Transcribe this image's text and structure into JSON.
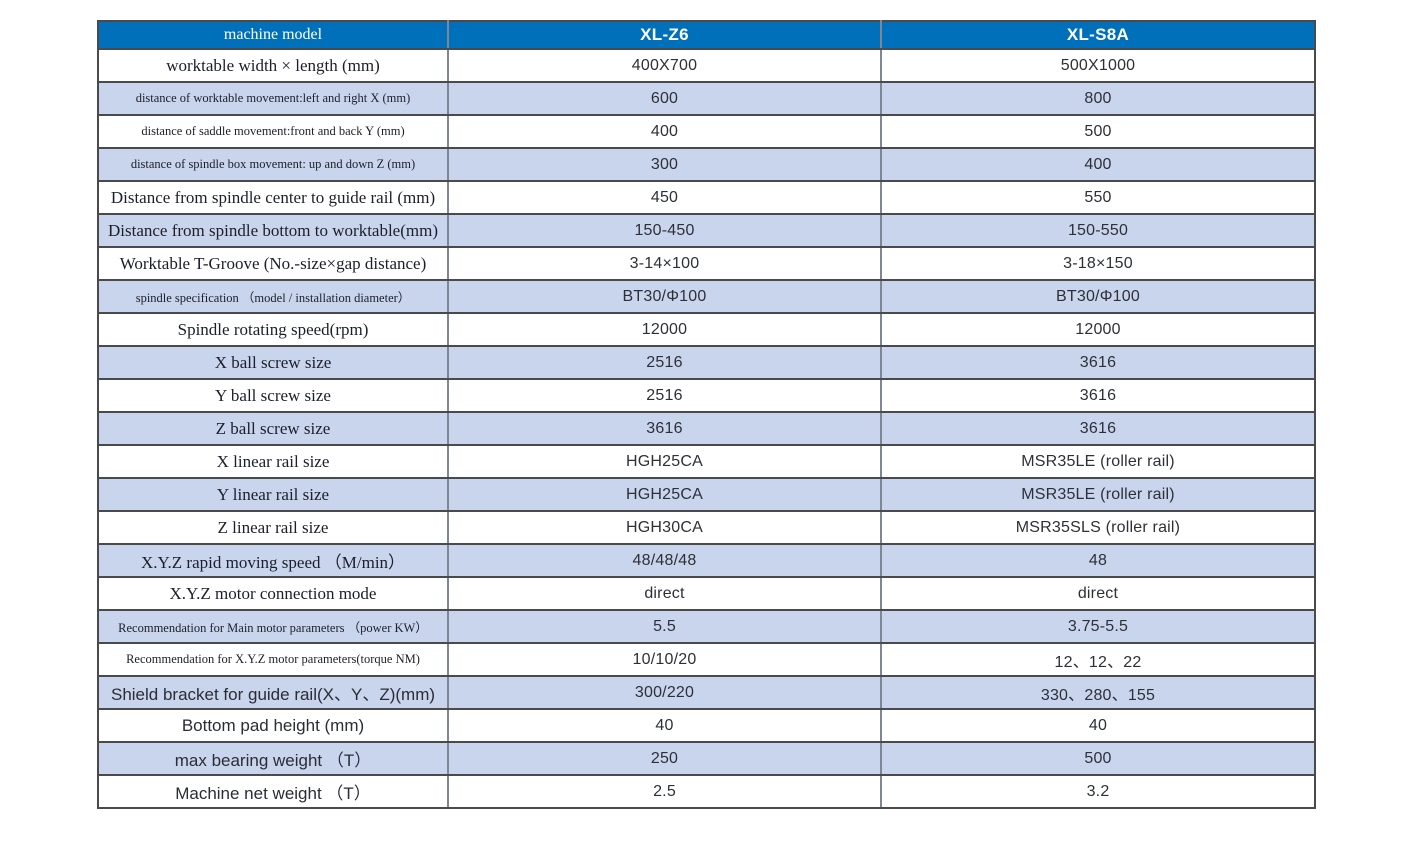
{
  "colors": {
    "header_bg": "#0070BA",
    "alt_row_bg": "#C9D5EC",
    "header_text": "#FFFFFF"
  },
  "table": {
    "columns": {
      "label": "machine model",
      "model_1": "XL-Z6",
      "model_2": "XL-S8A"
    },
    "rows": [
      {
        "label": "worktable width × length  (mm)",
        "xl_z6": "400X700",
        "xl_s8a": "500X1000"
      },
      {
        "label": "distance of worktable movement:left and right X  (mm)",
        "xl_z6": "600",
        "xl_s8a": "800"
      },
      {
        "label": "distance of saddle movement:front and back Y  (mm)",
        "xl_z6": "400",
        "xl_s8a": "500"
      },
      {
        "label": "distance of spindle box movement: up and down Z  (mm)",
        "xl_z6": "300",
        "xl_s8a": "400"
      },
      {
        "label": "Distance from spindle center to guide rail (mm)",
        "xl_z6": "450",
        "xl_s8a": "550"
      },
      {
        "label": "Distance from spindle bottom to worktable(mm)",
        "xl_z6": "150-450",
        "xl_s8a": "150-550"
      },
      {
        "label": "Worktable T-Groove (No.-size×gap distance)",
        "xl_z6": "3-14×100",
        "xl_s8a": "3-18×150"
      },
      {
        "label": "spindle specification （model / installation diameter）",
        "xl_z6": "BT30/Φ100",
        "xl_s8a": "BT30/Φ100"
      },
      {
        "label": "Spindle rotating speed(rpm)",
        "xl_z6": "12000",
        "xl_s8a": "12000"
      },
      {
        "label": "X ball screw size",
        "xl_z6": "2516",
        "xl_s8a": "3616"
      },
      {
        "label": "Y ball screw size",
        "xl_z6": "2516",
        "xl_s8a": "3616"
      },
      {
        "label": "Z ball screw size",
        "xl_z6": "3616",
        "xl_s8a": "3616"
      },
      {
        "label": "X linear rail size",
        "xl_z6": "HGH25CA",
        "xl_s8a": "MSR35LE (roller rail)"
      },
      {
        "label": "Y linear rail size",
        "xl_z6": "HGH25CA",
        "xl_s8a": "MSR35LE (roller rail)"
      },
      {
        "label": "Z linear rail size",
        "xl_z6": "HGH30CA",
        "xl_s8a": "MSR35SLS (roller rail)"
      },
      {
        "label": "X.Y.Z rapid moving speed （M/min）",
        "xl_z6": "48/48/48",
        "xl_s8a": "48"
      },
      {
        "label": "X.Y.Z motor connection mode",
        "xl_z6": "direct",
        "xl_s8a": "direct"
      },
      {
        "label": "Recommendation for Main motor parameters （power KW）",
        "xl_z6": "5.5",
        "xl_s8a": "3.75-5.5"
      },
      {
        "label": "Recommendation for X.Y.Z motor parameters(torque NM)",
        "xl_z6": "10/10/20",
        "xl_s8a": "12、12、22"
      },
      {
        "label": "Shield bracket for guide rail(X、Y、Z)(mm)",
        "xl_z6": "300/220",
        "xl_s8a": "330、280、155"
      },
      {
        "label": "Bottom pad height (mm)",
        "xl_z6": "40",
        "xl_s8a": "40"
      },
      {
        "label": "max bearing weight （T）",
        "xl_z6": "250",
        "xl_s8a": "500"
      },
      {
        "label": "Machine net weight （T）",
        "xl_z6": "2.5",
        "xl_s8a": "3.2"
      }
    ]
  }
}
